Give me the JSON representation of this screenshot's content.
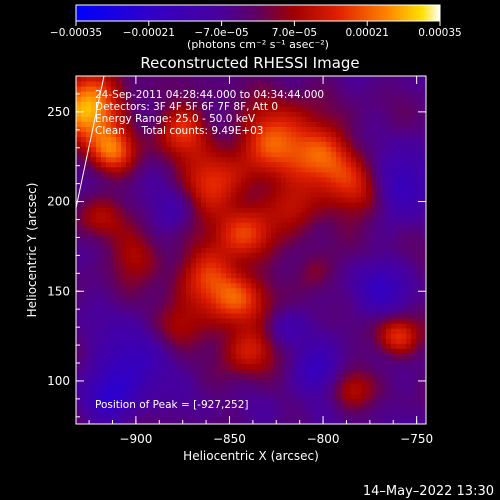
{
  "chart_data": {
    "type": "heatmap",
    "title": "Reconstructed RHESSI Image",
    "xlabel": "Heliocentric X (arcsec)",
    "ylabel": "Heliocentric Y (arcsec)",
    "xlim": [
      -932,
      -745
    ],
    "ylim": [
      76,
      270
    ],
    "x_ticks": [
      -900,
      -850,
      -800,
      -750
    ],
    "x_tick_labels": [
      "−900",
      "−850",
      "−800",
      "−750"
    ],
    "y_ticks": [
      100,
      150,
      200,
      250
    ],
    "y_tick_labels": [
      "100",
      "150",
      "200",
      "250"
    ],
    "colorbar": {
      "range": [
        -0.00035,
        0.00035
      ],
      "ticks": [
        -0.00035,
        -0.00021,
        -7e-05,
        7e-05,
        0.00021,
        0.00035
      ],
      "tick_labels": [
        "−0.00035",
        "−0.00021",
        "−7.0e−05",
        "7.0e−05",
        "0.00021",
        "0.00035"
      ],
      "unit_label": "(photons cm⁻² s⁻¹ asec⁻²)",
      "colors": [
        "#0000ff",
        "#4000c0",
        "#500090",
        "#a00000",
        "#e02000",
        "#ff7000",
        "#ffd000",
        "#ffffff"
      ]
    },
    "annotations": [
      "24-Sep-2011 04:28:44.000 to 04:34:44.000",
      "Detectors: 3F 4F 5F 6F 7F 8F, Att 0",
      "Energy Range: 25.0 - 50.0 keV",
      "Clean     Total counts: 9.49E+03"
    ],
    "peak_label": "Position of Peak = [-927,252]",
    "peak": [
      -927,
      252
    ],
    "hot_regions": [
      {
        "x": -927,
        "y": 252,
        "r": 13,
        "v": 0.00035
      },
      {
        "x": -912,
        "y": 228,
        "r": 9,
        "v": 0.00022
      },
      {
        "x": -875,
        "y": 240,
        "r": 10,
        "v": 0.0002
      },
      {
        "x": -858,
        "y": 210,
        "r": 12,
        "v": 0.00022
      },
      {
        "x": -842,
        "y": 182,
        "r": 11,
        "v": 0.0002
      },
      {
        "x": -825,
        "y": 236,
        "r": 14,
        "v": 0.00024
      },
      {
        "x": -800,
        "y": 225,
        "r": 13,
        "v": 0.0002
      },
      {
        "x": -778,
        "y": 206,
        "r": 12,
        "v": 0.00019
      },
      {
        "x": -815,
        "y": 198,
        "r": 10,
        "v": 0.00016
      },
      {
        "x": -862,
        "y": 160,
        "r": 12,
        "v": 0.00018
      },
      {
        "x": -845,
        "y": 145,
        "r": 11,
        "v": 0.00021
      },
      {
        "x": -878,
        "y": 130,
        "r": 10,
        "v": 0.00016
      },
      {
        "x": -838,
        "y": 118,
        "r": 10,
        "v": 0.00019
      },
      {
        "x": -900,
        "y": 170,
        "r": 10,
        "v": 0.00013
      },
      {
        "x": -920,
        "y": 190,
        "r": 9,
        "v": 0.00012
      },
      {
        "x": -760,
        "y": 125,
        "r": 8,
        "v": 0.00022
      },
      {
        "x": -785,
        "y": 95,
        "r": 8,
        "v": 0.00012
      },
      {
        "x": -805,
        "y": 160,
        "r": 8,
        "v": 0.0001
      }
    ],
    "cold_regions": [
      {
        "x": -760,
        "y": 210,
        "r": 12,
        "v": -0.0002
      },
      {
        "x": -900,
        "y": 112,
        "r": 13,
        "v": -0.00016
      },
      {
        "x": -915,
        "y": 90,
        "r": 10,
        "v": -0.00013
      },
      {
        "x": -805,
        "y": 105,
        "r": 9,
        "v": -0.00014
      },
      {
        "x": -770,
        "y": 150,
        "r": 11,
        "v": -0.00012
      },
      {
        "x": -880,
        "y": 195,
        "r": 8,
        "v": -9e-05
      },
      {
        "x": -820,
        "y": 130,
        "r": 8,
        "v": -0.0001
      }
    ],
    "grid": false
  },
  "footer": {
    "timestamp": "14–May–2022 13:30"
  }
}
